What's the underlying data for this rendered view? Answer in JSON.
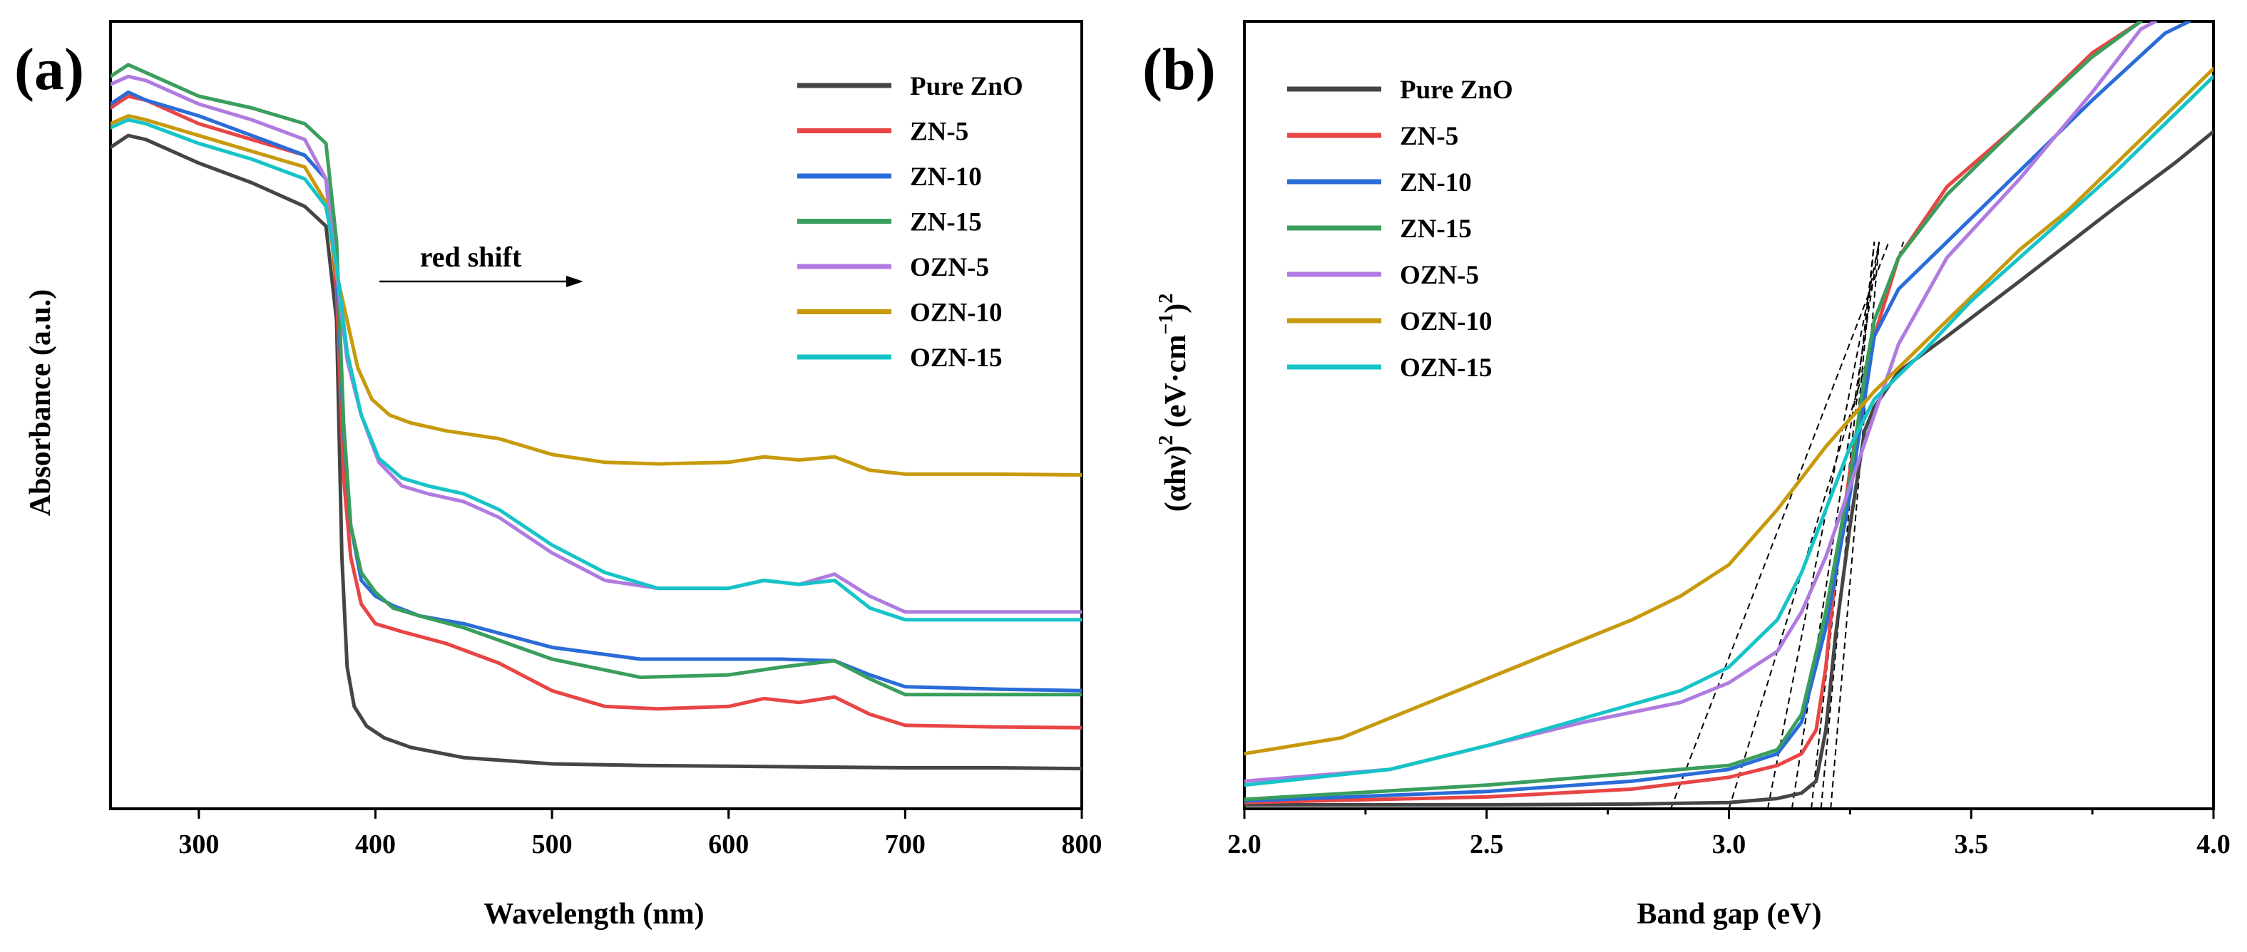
{
  "colors": {
    "Pure ZnO": "#454545",
    "ZN-5": "#e84545",
    "ZN-10": "#2a6cd8",
    "ZN-15": "#3a9e5c",
    "OZN-5": "#b07be0",
    "OZN-10": "#c79a0c",
    "OZN-15": "#16c4c8"
  },
  "chart_data": [
    {
      "panel_label": "(a)",
      "type": "line",
      "xlabel": "Wavelength (nm)",
      "ylabel": "Absorbance (a.u.)",
      "xlim": [
        250,
        800
      ],
      "ylim": [
        0,
        1.0
      ],
      "xticks": [
        300,
        400,
        500,
        600,
        700,
        800
      ],
      "yticks_shown": false,
      "legend_position": "top-right",
      "annotation": {
        "text": "red shift",
        "arrow": "right",
        "from_x": 400,
        "to_x": 525,
        "y": 0.67
      },
      "series": [
        {
          "name": "Pure ZnO",
          "x": [
            250,
            260,
            270,
            300,
            330,
            360,
            372,
            378,
            381,
            384,
            388,
            395,
            405,
            420,
            450,
            500,
            550,
            600,
            650,
            700,
            750,
            800
          ],
          "y": [
            0.84,
            0.855,
            0.85,
            0.82,
            0.795,
            0.765,
            0.74,
            0.62,
            0.32,
            0.18,
            0.13,
            0.105,
            0.09,
            0.078,
            0.065,
            0.057,
            0.055,
            0.054,
            0.053,
            0.052,
            0.052,
            0.051
          ]
        },
        {
          "name": "ZN-5",
          "x": [
            250,
            260,
            270,
            300,
            330,
            360,
            372,
            378,
            382,
            386,
            392,
            400,
            415,
            440,
            470,
            500,
            530,
            560,
            600,
            620,
            640,
            660,
            680,
            700,
            750,
            800
          ],
          "y": [
            0.89,
            0.905,
            0.9,
            0.87,
            0.85,
            0.83,
            0.8,
            0.66,
            0.42,
            0.32,
            0.26,
            0.235,
            0.225,
            0.21,
            0.185,
            0.15,
            0.13,
            0.127,
            0.13,
            0.14,
            0.135,
            0.142,
            0.12,
            0.106,
            0.104,
            0.103
          ]
        },
        {
          "name": "ZN-10",
          "x": [
            250,
            260,
            270,
            300,
            330,
            360,
            372,
            378,
            382,
            386,
            392,
            400,
            410,
            425,
            450,
            500,
            550,
            600,
            630,
            660,
            680,
            700,
            750,
            800
          ],
          "y": [
            0.895,
            0.91,
            0.9,
            0.88,
            0.855,
            0.83,
            0.8,
            0.69,
            0.48,
            0.36,
            0.29,
            0.27,
            0.258,
            0.245,
            0.235,
            0.205,
            0.19,
            0.19,
            0.19,
            0.188,
            0.17,
            0.155,
            0.152,
            0.15
          ]
        },
        {
          "name": "ZN-15",
          "x": [
            250,
            260,
            270,
            300,
            330,
            360,
            372,
            378,
            382,
            386,
            392,
            400,
            410,
            425,
            450,
            500,
            550,
            600,
            630,
            660,
            680,
            700,
            750,
            800
          ],
          "y": [
            0.93,
            0.945,
            0.935,
            0.905,
            0.89,
            0.87,
            0.845,
            0.72,
            0.49,
            0.36,
            0.3,
            0.275,
            0.255,
            0.245,
            0.23,
            0.19,
            0.167,
            0.17,
            0.18,
            0.188,
            0.165,
            0.145,
            0.145,
            0.145
          ]
        },
        {
          "name": "OZN-5",
          "x": [
            250,
            260,
            270,
            300,
            330,
            360,
            372,
            378,
            384,
            392,
            402,
            415,
            430,
            450,
            470,
            500,
            530,
            560,
            600,
            620,
            640,
            660,
            680,
            700,
            750,
            800
          ],
          "y": [
            0.92,
            0.93,
            0.925,
            0.895,
            0.875,
            0.85,
            0.8,
            0.68,
            0.57,
            0.5,
            0.44,
            0.41,
            0.4,
            0.39,
            0.37,
            0.325,
            0.29,
            0.28,
            0.28,
            0.29,
            0.285,
            0.298,
            0.27,
            0.25,
            0.25,
            0.25
          ]
        },
        {
          "name": "OZN-10",
          "x": [
            250,
            260,
            270,
            300,
            330,
            360,
            372,
            378,
            384,
            390,
            398,
            408,
            420,
            440,
            470,
            500,
            530,
            560,
            600,
            620,
            640,
            660,
            680,
            700,
            750,
            800
          ],
          "y": [
            0.87,
            0.88,
            0.875,
            0.855,
            0.835,
            0.815,
            0.77,
            0.68,
            0.62,
            0.56,
            0.52,
            0.5,
            0.49,
            0.48,
            0.47,
            0.45,
            0.44,
            0.438,
            0.44,
            0.447,
            0.443,
            0.447,
            0.43,
            0.425,
            0.425,
            0.424
          ]
        },
        {
          "name": "OZN-15",
          "x": [
            250,
            260,
            270,
            300,
            330,
            360,
            372,
            378,
            384,
            392,
            402,
            415,
            430,
            450,
            470,
            500,
            530,
            560,
            600,
            620,
            640,
            660,
            680,
            700,
            750,
            800
          ],
          "y": [
            0.865,
            0.875,
            0.87,
            0.845,
            0.825,
            0.8,
            0.765,
            0.69,
            0.58,
            0.5,
            0.445,
            0.42,
            0.41,
            0.4,
            0.38,
            0.335,
            0.3,
            0.28,
            0.28,
            0.29,
            0.285,
            0.29,
            0.255,
            0.24,
            0.24,
            0.24
          ]
        }
      ]
    },
    {
      "panel_label": "(b)",
      "type": "line",
      "xlabel": "Band gap (eV)",
      "ylabel": "(αhν)² (eV·cm⁻¹)²",
      "xlim": [
        2.0,
        4.0
      ],
      "ylim": [
        0,
        1.0
      ],
      "xticks": [
        2.0,
        2.5,
        3.0,
        3.5,
        4.0
      ],
      "xtick_labels": [
        "2.0",
        "2.5",
        "3.0",
        "3.5",
        "4.0"
      ],
      "yticks_shown": false,
      "legend_position": "top-left",
      "tangent_fits": [
        {
          "x": [
            2.88,
            3.33
          ]
        },
        {
          "x": [
            3.0,
            3.36
          ]
        },
        {
          "x": [
            3.08,
            3.31
          ]
        },
        {
          "x": [
            3.13,
            3.31
          ]
        },
        {
          "x": [
            3.17,
            3.3
          ]
        },
        {
          "x": [
            3.19,
            3.3
          ]
        },
        {
          "x": [
            3.21,
            3.31
          ]
        }
      ],
      "series": [
        {
          "name": "Pure ZnO",
          "x": [
            2.0,
            2.5,
            2.8,
            3.0,
            3.1,
            3.15,
            3.18,
            3.2,
            3.22,
            3.25,
            3.28,
            3.3,
            3.35,
            3.45,
            3.6,
            3.8,
            3.92,
            4.0
          ],
          "y": [
            0.005,
            0.005,
            0.006,
            0.008,
            0.013,
            0.02,
            0.035,
            0.1,
            0.22,
            0.36,
            0.48,
            0.51,
            0.555,
            0.6,
            0.67,
            0.765,
            0.82,
            0.86
          ]
        },
        {
          "name": "ZN-5",
          "x": [
            2.0,
            2.5,
            2.8,
            3.0,
            3.1,
            3.15,
            3.18,
            3.2,
            3.22,
            3.25,
            3.28,
            3.3,
            3.35,
            3.45,
            3.6,
            3.75,
            3.85
          ],
          "y": [
            0.008,
            0.015,
            0.025,
            0.04,
            0.055,
            0.07,
            0.1,
            0.18,
            0.3,
            0.43,
            0.54,
            0.6,
            0.7,
            0.79,
            0.87,
            0.96,
            1.0
          ]
        },
        {
          "name": "ZN-10",
          "x": [
            2.0,
            2.5,
            2.8,
            3.0,
            3.1,
            3.15,
            3.2,
            3.25,
            3.28,
            3.3,
            3.35,
            3.45,
            3.6,
            3.75,
            3.9,
            3.95
          ],
          "y": [
            0.01,
            0.022,
            0.035,
            0.05,
            0.07,
            0.11,
            0.23,
            0.4,
            0.52,
            0.6,
            0.66,
            0.72,
            0.81,
            0.9,
            0.985,
            1.0
          ]
        },
        {
          "name": "ZN-15",
          "x": [
            2.0,
            2.5,
            2.8,
            3.0,
            3.1,
            3.15,
            3.2,
            3.25,
            3.28,
            3.3,
            3.35,
            3.45,
            3.6,
            3.75,
            3.85
          ],
          "y": [
            0.012,
            0.03,
            0.045,
            0.055,
            0.075,
            0.12,
            0.25,
            0.42,
            0.55,
            0.62,
            0.7,
            0.78,
            0.87,
            0.955,
            1.0
          ]
        },
        {
          "name": "OZN-5",
          "x": [
            2.0,
            2.3,
            2.5,
            2.7,
            2.9,
            3.0,
            3.1,
            3.15,
            3.2,
            3.25,
            3.3,
            3.35,
            3.45,
            3.6,
            3.75,
            3.85,
            3.88
          ],
          "y": [
            0.035,
            0.05,
            0.08,
            0.11,
            0.135,
            0.16,
            0.2,
            0.25,
            0.32,
            0.41,
            0.5,
            0.59,
            0.7,
            0.8,
            0.91,
            0.99,
            1.0
          ]
        },
        {
          "name": "OZN-10",
          "x": [
            2.0,
            2.2,
            2.4,
            2.6,
            2.8,
            2.9,
            3.0,
            3.1,
            3.2,
            3.3,
            3.4,
            3.5,
            3.6,
            3.7,
            3.8,
            3.9,
            4.0
          ],
          "y": [
            0.07,
            0.09,
            0.14,
            0.19,
            0.24,
            0.27,
            0.31,
            0.38,
            0.46,
            0.53,
            0.59,
            0.65,
            0.71,
            0.76,
            0.82,
            0.88,
            0.94
          ]
        },
        {
          "name": "OZN-15",
          "x": [
            2.0,
            2.3,
            2.5,
            2.7,
            2.9,
            3.0,
            3.1,
            3.15,
            3.2,
            3.25,
            3.3,
            3.4,
            3.5,
            3.6,
            3.7,
            3.8,
            3.9,
            4.0
          ],
          "y": [
            0.03,
            0.05,
            0.08,
            0.115,
            0.15,
            0.18,
            0.24,
            0.3,
            0.38,
            0.46,
            0.52,
            0.58,
            0.645,
            0.7,
            0.755,
            0.81,
            0.87,
            0.93
          ]
        }
      ]
    }
  ]
}
